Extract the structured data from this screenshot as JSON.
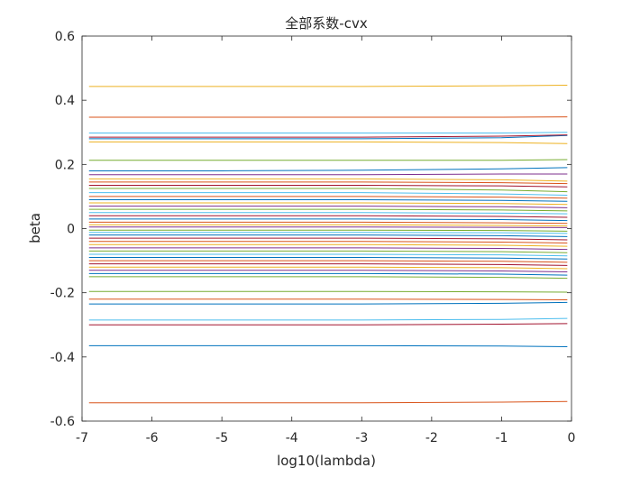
{
  "chart_data": {
    "type": "line",
    "title": "全部系数-cvx",
    "xlabel": "log10(lambda)",
    "ylabel": "beta",
    "xlim": [
      -7,
      0
    ],
    "ylim": [
      -0.6,
      0.6
    ],
    "xticks": [
      -7,
      -6,
      -5,
      -4,
      -3,
      -2,
      -1,
      0
    ],
    "yticks": [
      -0.6,
      -0.4,
      -0.2,
      0,
      0.2,
      0.4,
      0.6
    ],
    "xtick_labels": [
      "-7",
      "-6",
      "-5",
      "-4",
      "-3",
      "-2",
      "-1",
      "0"
    ],
    "ytick_labels": [
      "-0.6",
      "-0.4",
      "-0.2",
      "0",
      "0.2",
      "0.4",
      "0.6"
    ],
    "grid": false,
    "legend": "none",
    "x": [
      -6.9,
      -5,
      -3,
      -1,
      -0.06
    ],
    "series": [
      {
        "color": "#EDB120",
        "values": [
          0.443,
          0.443,
          0.443,
          0.445,
          0.447
        ]
      },
      {
        "color": "#D95319",
        "values": [
          0.347,
          0.347,
          0.347,
          0.347,
          0.348
        ]
      },
      {
        "color": "#4DBEEE",
        "values": [
          0.298,
          0.298,
          0.298,
          0.298,
          0.3
        ]
      },
      {
        "color": "#0072BD",
        "values": [
          0.28,
          0.28,
          0.28,
          0.283,
          0.29
        ]
      },
      {
        "color": "#A2142F",
        "values": [
          0.285,
          0.285,
          0.285,
          0.288,
          0.292
        ]
      },
      {
        "color": "#EDB120",
        "values": [
          0.27,
          0.27,
          0.27,
          0.268,
          0.265
        ]
      },
      {
        "color": "#77AC30",
        "values": [
          0.213,
          0.213,
          0.213,
          0.213,
          0.215
        ]
      },
      {
        "color": "#0072BD",
        "values": [
          0.18,
          0.18,
          0.182,
          0.186,
          0.19
        ]
      },
      {
        "color": "#7E2F8E",
        "values": [
          0.168,
          0.168,
          0.168,
          0.17,
          0.17
        ]
      },
      {
        "color": "#EDB120",
        "values": [
          0.155,
          0.155,
          0.155,
          0.152,
          0.148
        ]
      },
      {
        "color": "#D95319",
        "values": [
          0.145,
          0.145,
          0.145,
          0.143,
          0.14
        ]
      },
      {
        "color": "#A2142F",
        "values": [
          0.135,
          0.135,
          0.135,
          0.133,
          0.13
        ]
      },
      {
        "color": "#77AC30",
        "values": [
          0.125,
          0.125,
          0.125,
          0.12,
          0.115
        ]
      },
      {
        "color": "#4DBEEE",
        "values": [
          0.112,
          0.112,
          0.112,
          0.108,
          0.104
        ]
      },
      {
        "color": "#D95319",
        "values": [
          0.1,
          0.1,
          0.1,
          0.098,
          0.095
        ]
      },
      {
        "color": "#0072BD",
        "values": [
          0.09,
          0.09,
          0.09,
          0.088,
          0.085
        ]
      },
      {
        "color": "#EDB120",
        "values": [
          0.08,
          0.08,
          0.08,
          0.078,
          0.075
        ]
      },
      {
        "color": "#7E2F8E",
        "values": [
          0.07,
          0.07,
          0.07,
          0.068,
          0.065
        ]
      },
      {
        "color": "#77AC30",
        "values": [
          0.06,
          0.06,
          0.06,
          0.058,
          0.055
        ]
      },
      {
        "color": "#4DBEEE",
        "values": [
          0.05,
          0.05,
          0.05,
          0.048,
          0.046
        ]
      },
      {
        "color": "#A2142F",
        "values": [
          0.04,
          0.04,
          0.04,
          0.038,
          0.035
        ]
      },
      {
        "color": "#0072BD",
        "values": [
          0.03,
          0.03,
          0.03,
          0.028,
          0.025
        ]
      },
      {
        "color": "#D95319",
        "values": [
          0.02,
          0.02,
          0.02,
          0.018,
          0.016
        ]
      },
      {
        "color": "#EDB120",
        "values": [
          0.012,
          0.012,
          0.012,
          0.01,
          0.008
        ]
      },
      {
        "color": "#7E2F8E",
        "values": [
          0.005,
          0.005,
          0.005,
          0.004,
          0.003
        ]
      },
      {
        "color": "#77AC30",
        "values": [
          -0.005,
          -0.005,
          -0.005,
          -0.006,
          -0.008
        ]
      },
      {
        "color": "#4DBEEE",
        "values": [
          -0.012,
          -0.012,
          -0.012,
          -0.013,
          -0.015
        ]
      },
      {
        "color": "#0072BD",
        "values": [
          -0.02,
          -0.02,
          -0.02,
          -0.022,
          -0.025
        ]
      },
      {
        "color": "#A2142F",
        "values": [
          -0.03,
          -0.03,
          -0.03,
          -0.032,
          -0.035
        ]
      },
      {
        "color": "#D95319",
        "values": [
          -0.04,
          -0.04,
          -0.04,
          -0.042,
          -0.045
        ]
      },
      {
        "color": "#EDB120",
        "values": [
          -0.05,
          -0.05,
          -0.05,
          -0.052,
          -0.055
        ]
      },
      {
        "color": "#7E2F8E",
        "values": [
          -0.06,
          -0.06,
          -0.06,
          -0.062,
          -0.065
        ]
      },
      {
        "color": "#77AC30",
        "values": [
          -0.07,
          -0.07,
          -0.07,
          -0.072,
          -0.075
        ]
      },
      {
        "color": "#4DBEEE",
        "values": [
          -0.08,
          -0.08,
          -0.08,
          -0.082,
          -0.085
        ]
      },
      {
        "color": "#0072BD",
        "values": [
          -0.09,
          -0.09,
          -0.09,
          -0.092,
          -0.095
        ]
      },
      {
        "color": "#D95319",
        "values": [
          -0.1,
          -0.1,
          -0.1,
          -0.102,
          -0.105
        ]
      },
      {
        "color": "#A2142F",
        "values": [
          -0.11,
          -0.11,
          -0.11,
          -0.112,
          -0.115
        ]
      },
      {
        "color": "#EDB120",
        "values": [
          -0.12,
          -0.12,
          -0.12,
          -0.122,
          -0.125
        ]
      },
      {
        "color": "#7E2F8E",
        "values": [
          -0.13,
          -0.13,
          -0.13,
          -0.132,
          -0.135
        ]
      },
      {
        "color": "#0072BD",
        "values": [
          -0.14,
          -0.14,
          -0.14,
          -0.142,
          -0.145
        ]
      },
      {
        "color": "#77AC30",
        "values": [
          -0.15,
          -0.15,
          -0.15,
          -0.152,
          -0.155
        ]
      },
      {
        "color": "#77AC30",
        "values": [
          -0.196,
          -0.196,
          -0.196,
          -0.197,
          -0.198
        ]
      },
      {
        "color": "#D95319",
        "values": [
          -0.22,
          -0.22,
          -0.22,
          -0.221,
          -0.222
        ]
      },
      {
        "color": "#0072BD",
        "values": [
          -0.235,
          -0.235,
          -0.235,
          -0.233,
          -0.23
        ]
      },
      {
        "color": "#4DBEEE",
        "values": [
          -0.285,
          -0.285,
          -0.285,
          -0.283,
          -0.28
        ]
      },
      {
        "color": "#A2142F",
        "values": [
          -0.3,
          -0.3,
          -0.3,
          -0.298,
          -0.296
        ]
      },
      {
        "color": "#0072BD",
        "values": [
          -0.365,
          -0.365,
          -0.365,
          -0.366,
          -0.368
        ]
      },
      {
        "color": "#D95319",
        "values": [
          -0.543,
          -0.543,
          -0.543,
          -0.541,
          -0.539
        ]
      }
    ]
  }
}
